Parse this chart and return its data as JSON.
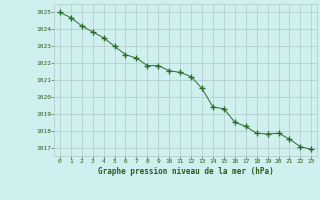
{
  "x": [
    0,
    1,
    2,
    3,
    4,
    5,
    6,
    7,
    8,
    9,
    10,
    11,
    12,
    13,
    14,
    15,
    16,
    17,
    18,
    19,
    20,
    21,
    22,
    23
  ],
  "y": [
    1025.0,
    1024.7,
    1024.2,
    1023.85,
    1023.5,
    1023.0,
    1022.5,
    1022.3,
    1021.85,
    1021.85,
    1021.55,
    1021.45,
    1021.2,
    1020.5,
    1019.4,
    1019.3,
    1018.5,
    1018.25,
    1017.85,
    1017.8,
    1017.85,
    1017.5,
    1017.05,
    1016.9
  ],
  "line_color": "#2d6b2d",
  "marker": "+",
  "marker_size": 4,
  "bg_color": "#cff0ee",
  "grid_major_color": "#b0c8c8",
  "grid_minor_color": "#c8e0e0",
  "text_color": "#2d5a1e",
  "xlabel": "Graphe pression niveau de la mer (hPa)",
  "ylim": [
    1016.5,
    1025.5
  ],
  "xlim": [
    -0.5,
    23.5
  ],
  "yticks": [
    1017,
    1018,
    1019,
    1020,
    1021,
    1022,
    1023,
    1024,
    1025
  ],
  "xticks": [
    0,
    1,
    2,
    3,
    4,
    5,
    6,
    7,
    8,
    9,
    10,
    11,
    12,
    13,
    14,
    15,
    16,
    17,
    18,
    19,
    20,
    21,
    22,
    23
  ]
}
